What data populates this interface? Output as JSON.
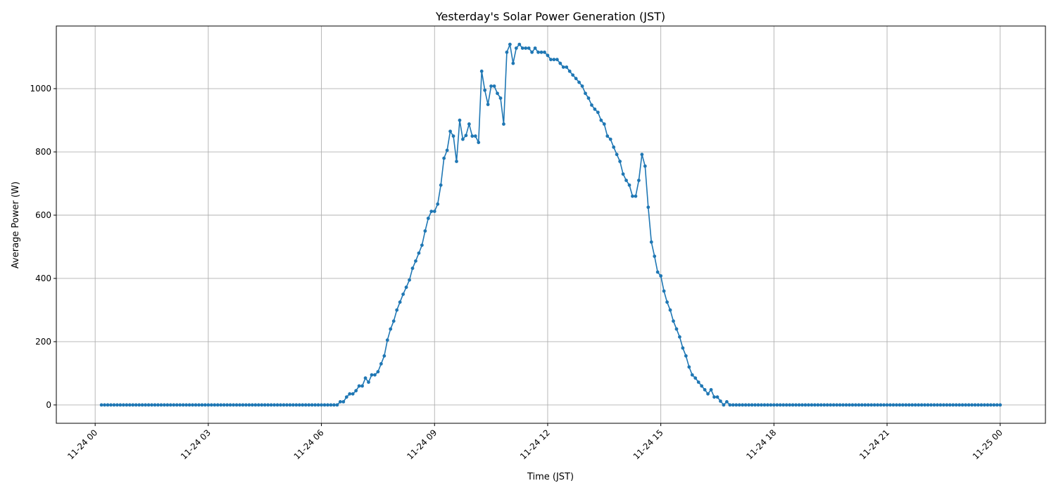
{
  "chart_data": {
    "type": "line",
    "title": "Yesterday's Solar Power Generation (JST)",
    "xlabel": "Time (JST)",
    "ylabel": "Average Power (W)",
    "x_start": "2024-11-24 00:10",
    "x_interval_minutes": 5,
    "xlim_hours": [
      -1.03,
      25.2
    ],
    "ylim": [
      -58,
      1198
    ],
    "grid": true,
    "marker": "circle",
    "color": "#1f77b4",
    "x_ticks": [
      {
        "hour": 0,
        "label": "11-24 00"
      },
      {
        "hour": 3,
        "label": "11-24 03"
      },
      {
        "hour": 6,
        "label": "11-24 06"
      },
      {
        "hour": 9,
        "label": "11-24 09"
      },
      {
        "hour": 12,
        "label": "11-24 12"
      },
      {
        "hour": 15,
        "label": "11-24 15"
      },
      {
        "hour": 18,
        "label": "11-24 18"
      },
      {
        "hour": 21,
        "label": "11-24 21"
      },
      {
        "hour": 24,
        "label": "11-25 00"
      }
    ],
    "y_ticks": [
      {
        "value": 0,
        "label": "0"
      },
      {
        "value": 200,
        "label": "200"
      },
      {
        "value": 400,
        "label": "400"
      },
      {
        "value": 600,
        "label": "600"
      },
      {
        "value": 800,
        "label": "800"
      },
      {
        "value": 1000,
        "label": "1000"
      }
    ],
    "values": [
      0,
      0,
      0,
      0,
      0,
      0,
      0,
      0,
      0,
      0,
      0,
      0,
      0,
      0,
      0,
      0,
      0,
      0,
      0,
      0,
      0,
      0,
      0,
      0,
      0,
      0,
      0,
      0,
      0,
      0,
      0,
      0,
      0,
      0,
      0,
      0,
      0,
      0,
      0,
      0,
      0,
      0,
      0,
      0,
      0,
      0,
      0,
      0,
      0,
      0,
      0,
      0,
      0,
      0,
      0,
      0,
      0,
      0,
      0,
      0,
      0,
      0,
      0,
      0,
      0,
      0,
      0,
      0,
      0,
      0,
      0,
      0,
      0,
      0,
      0,
      0,
      10,
      10,
      25,
      35,
      35,
      45,
      60,
      60,
      85,
      72,
      95,
      95,
      105,
      130,
      155,
      205,
      240,
      265,
      300,
      325,
      350,
      372,
      395,
      432,
      455,
      480,
      505,
      550,
      590,
      612,
      612,
      635,
      695,
      780,
      805,
      865,
      850,
      770,
      900,
      840,
      852,
      888,
      850,
      850,
      830,
      1055,
      995,
      950,
      1008,
      1008,
      985,
      970,
      888,
      1115,
      1140,
      1080,
      1128,
      1140,
      1128,
      1128,
      1128,
      1115,
      1128,
      1115,
      1115,
      1115,
      1105,
      1092,
      1092,
      1092,
      1080,
      1068,
      1068,
      1055,
      1043,
      1032,
      1020,
      1008,
      985,
      970,
      948,
      935,
      925,
      900,
      888,
      850,
      840,
      815,
      792,
      770,
      730,
      710,
      695,
      660,
      660,
      710,
      792,
      755,
      625,
      515,
      470,
      420,
      408,
      360,
      325,
      300,
      265,
      240,
      215,
      180,
      155,
      120,
      95,
      85,
      72,
      60,
      48,
      35,
      48,
      25,
      25,
      12,
      0,
      10,
      0,
      0,
      0,
      0,
      0,
      0,
      0,
      0,
      0,
      0,
      0,
      0,
      0,
      0,
      0,
      0,
      0,
      0,
      0,
      0,
      0,
      0,
      0,
      0,
      0,
      0,
      0,
      0,
      0,
      0,
      0,
      0,
      0,
      0,
      0,
      0,
      0,
      0,
      0,
      0,
      0,
      0,
      0,
      0,
      0,
      0,
      0,
      0,
      0,
      0,
      0,
      0,
      0,
      0,
      0,
      0,
      0,
      0,
      0,
      0,
      0,
      0,
      0,
      0,
      0,
      0,
      0,
      0,
      0,
      0,
      0,
      0,
      0,
      0,
      0,
      0,
      0,
      0,
      0,
      0,
      0,
      0,
      0,
      0,
      0,
      0,
      0
    ]
  }
}
